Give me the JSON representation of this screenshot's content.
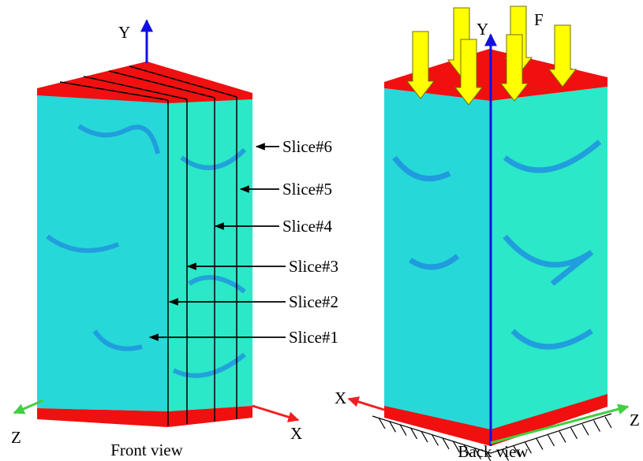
{
  "front": {
    "axes": {
      "y": "Y",
      "z": "Z",
      "x": "X"
    },
    "slices": [
      "Slice#1",
      "Slice#2",
      "Slice#3",
      "Slice#4",
      "Slice#5",
      "Slice#6"
    ],
    "caption": "Front view"
  },
  "back": {
    "axes": {
      "y": "Y",
      "x": "X",
      "z": "Z"
    },
    "force": "F",
    "caption": "Back view"
  }
}
